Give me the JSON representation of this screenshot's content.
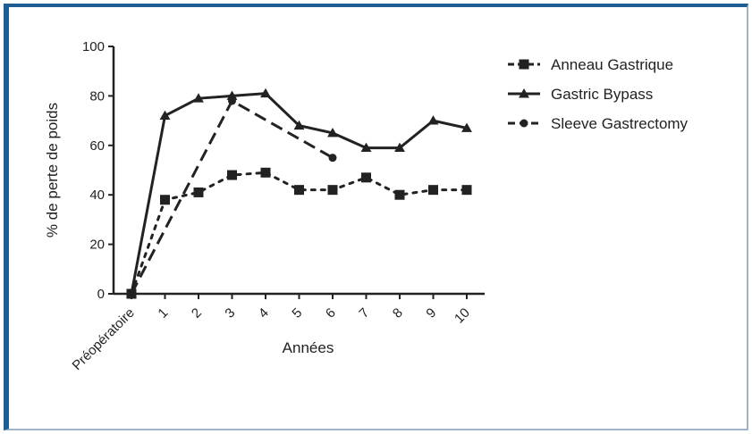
{
  "colors": {
    "frame_border": "#1d5f94",
    "series": "#222222"
  },
  "chart_data": {
    "type": "line",
    "xlabel": "Années",
    "ylabel": "% de perte de poids",
    "x_categories": [
      "Préopératoire",
      "1",
      "2",
      "3",
      "4",
      "5",
      "6",
      "7",
      "8",
      "9",
      "10"
    ],
    "y_ticks": [
      "0",
      "20",
      "40",
      "60",
      "80",
      "100"
    ],
    "ylim": [
      0,
      100
    ],
    "grid": false,
    "legend_position": "right",
    "series": [
      {
        "name": "Anneau Gastrique",
        "marker": "square",
        "line_style": "dotted",
        "x": [
          0,
          1,
          2,
          3,
          4,
          5,
          6,
          7,
          8,
          9,
          10
        ],
        "y": [
          0,
          38,
          41,
          48,
          49,
          42,
          42,
          47,
          40,
          42,
          42
        ]
      },
      {
        "name": "Gastric Bypass",
        "marker": "triangle",
        "line_style": "solid",
        "x": [
          0,
          1,
          2,
          3,
          4,
          5,
          6,
          7,
          8,
          9,
          10
        ],
        "y": [
          0,
          72,
          79,
          80,
          81,
          68,
          65,
          59,
          59,
          70,
          67
        ]
      },
      {
        "name": "Sleeve Gastrectomy",
        "marker": "circle",
        "line_style": "dashed",
        "x": [
          0,
          3,
          6
        ],
        "y": [
          0,
          78,
          55
        ]
      }
    ]
  }
}
